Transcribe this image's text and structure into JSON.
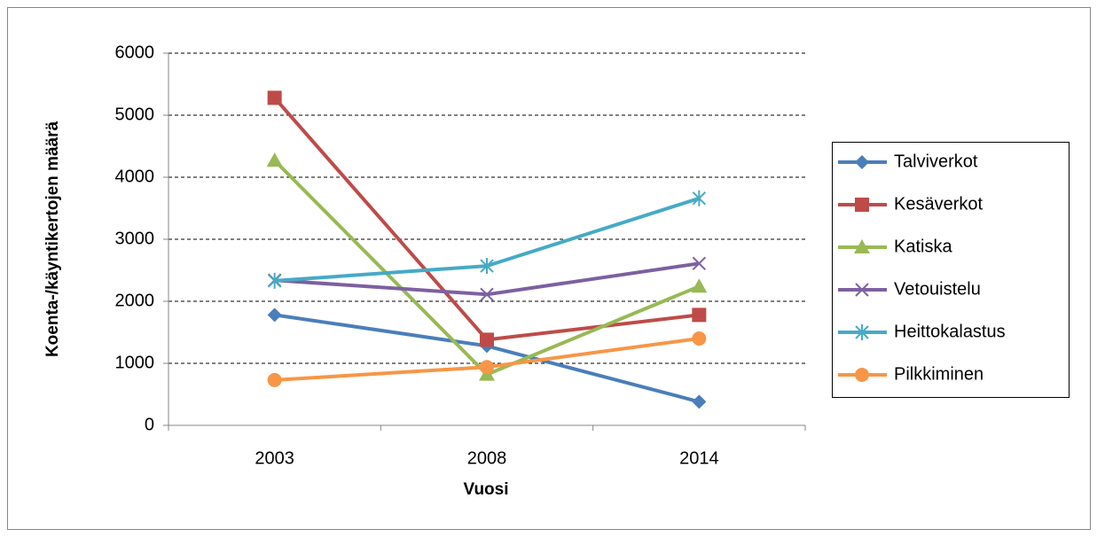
{
  "chart_data": {
    "type": "line",
    "x_label": "Vuosi",
    "y_label": "Koenta-/käyntikertojen määrä",
    "categories": [
      "2003",
      "2008",
      "2014"
    ],
    "series": [
      {
        "name": "Talviverkot",
        "color": "#4a7ebb",
        "marker": "diamond",
        "values": [
          1780,
          1280,
          380
        ]
      },
      {
        "name": "Kesäverkot",
        "color": "#be4b48",
        "marker": "square",
        "values": [
          5280,
          1380,
          1780
        ]
      },
      {
        "name": "Katiska",
        "color": "#98b954",
        "marker": "triangle",
        "values": [
          4270,
          820,
          2240
        ]
      },
      {
        "name": "Vetouistelu",
        "color": "#7d60a0",
        "marker": "x",
        "values": [
          2340,
          2110,
          2610
        ]
      },
      {
        "name": "Heittokalastus",
        "color": "#46aac5",
        "marker": "asterisk",
        "values": [
          2330,
          2570,
          3660
        ]
      },
      {
        "name": "Pilkkiminen",
        "color": "#f79646",
        "marker": "circle",
        "values": [
          730,
          940,
          1400
        ]
      }
    ],
    "ylim": [
      0,
      6000
    ],
    "yticks": [
      0,
      1000,
      2000,
      3000,
      4000,
      5000,
      6000
    ],
    "grid": true,
    "legend": "right"
  }
}
